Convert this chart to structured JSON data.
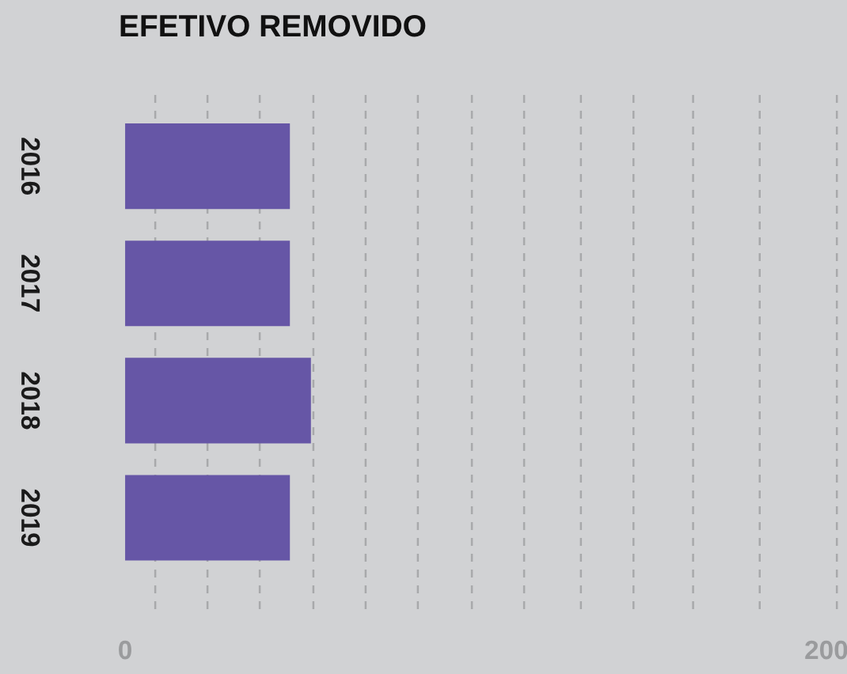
{
  "chart_data": {
    "type": "bar",
    "orientation": "horizontal",
    "title": "EFETIVO REMOVIDO",
    "categories": [
      "2016",
      "2017",
      "2018",
      "2019"
    ],
    "values": [
      47,
      47,
      53,
      47
    ],
    "color": "#6656a6",
    "xlim": [
      0,
      205
    ],
    "xticks": [
      0,
      200
    ],
    "grid": false,
    "ref_lines": [
      {
        "axis": "x",
        "value": 8.6,
        "color": "#a8a9ab",
        "line_style": "dashed"
      },
      {
        "axis": "x",
        "value": 23.5,
        "color": "#a8a9ab",
        "line_style": "dashed"
      },
      {
        "axis": "x",
        "value": 38.4,
        "color": "#a8a9ab",
        "line_style": "dashed"
      },
      {
        "axis": "x",
        "value": 53.7,
        "color": "#a8a9ab",
        "line_style": "dashed"
      },
      {
        "axis": "x",
        "value": 68.6,
        "color": "#a8a9ab",
        "line_style": "dashed"
      },
      {
        "axis": "x",
        "value": 83.5,
        "color": "#a8a9ab",
        "line_style": "dashed"
      },
      {
        "axis": "x",
        "value": 98.9,
        "color": "#a8a9ab",
        "line_style": "dashed"
      },
      {
        "axis": "x",
        "value": 113.8,
        "color": "#a8a9ab",
        "line_style": "dashed"
      },
      {
        "axis": "x",
        "value": 130,
        "color": "#a8a9ab",
        "line_style": "dashed"
      },
      {
        "axis": "x",
        "value": 145,
        "color": "#a8a9ab",
        "line_style": "dashed"
      },
      {
        "axis": "x",
        "value": 162,
        "color": "#a8a9ab",
        "line_style": "dashed"
      },
      {
        "axis": "x",
        "value": 181,
        "color": "#a8a9ab",
        "line_style": "dashed"
      },
      {
        "axis": "x",
        "value": 203,
        "color": "#a8a9ab",
        "line_style": "dashed"
      }
    ]
  }
}
